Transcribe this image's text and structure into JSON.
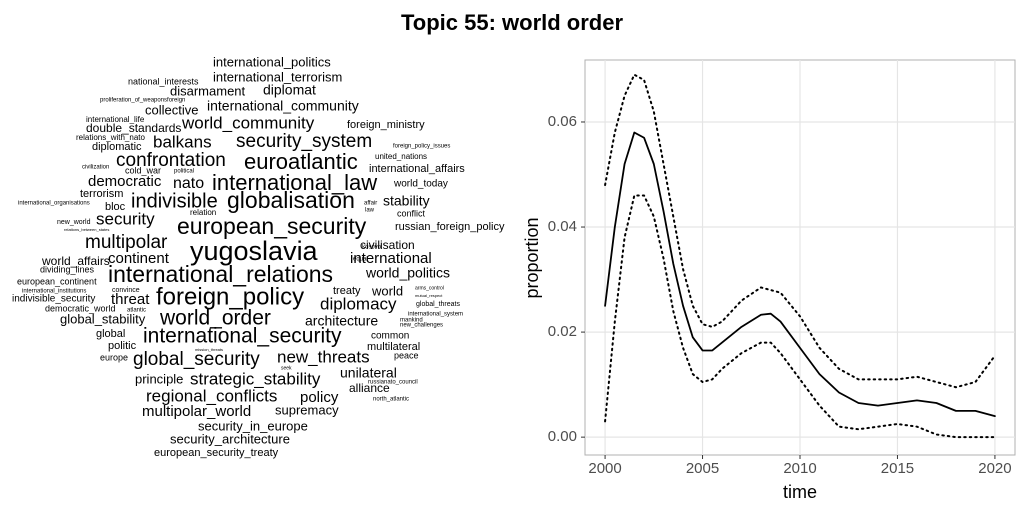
{
  "title": "Topic 55: world order",
  "word_cloud": {
    "words": [
      "international_politics",
      "national_interests",
      "international_terrorism",
      "disarmament",
      "diplomat",
      "proliferation_of_weaponsforeign",
      "international_community",
      "collective",
      "international_life",
      "world_community",
      "foreign_ministry",
      "double_standards",
      "relations_with_nato",
      "balkans",
      "security_system",
      "diplomatic",
      "foreign_policy_issues",
      "united_nations",
      "civilization",
      "cold_war",
      "political",
      "confrontation",
      "euroatlantic",
      "international_affairs",
      "democratic",
      "nato",
      "international_law",
      "world_today",
      "terrorism",
      "globalisation",
      "indivisible",
      "international_organisations",
      "bloc",
      "affair",
      "stability",
      "law",
      "relation",
      "conflict",
      "new_world",
      "security",
      "european_security",
      "russian_foreign_policy",
      "relations_between_states",
      "multipolar",
      "kosovo",
      "civilisation",
      "yugoslavia",
      "equal",
      "international",
      "world_affairs",
      "continent",
      "dividing_lines",
      "international_relations",
      "world_politics",
      "european_continent",
      "international_institutions",
      "convince",
      "treaty",
      "world",
      "arms_control",
      "mutual_respect",
      "indivisible_security",
      "threat",
      "foreign_policy",
      "diplomacy",
      "global_threats",
      "democratic_world",
      "atlantic",
      "international_system",
      "global_stability",
      "world_order",
      "architecture",
      "mankind",
      "new_challenges",
      "international_security",
      "common",
      "global",
      "politic",
      "multilateral",
      "mission_threats",
      "europe",
      "global_security",
      "new_threats",
      "peace",
      "seek",
      "principle",
      "strategic_stability",
      "unilateral",
      "russianato_council",
      "alliance",
      "regional_conflicts",
      "policy",
      "north_atlantic",
      "multipolar_world",
      "supremacy",
      "security_in_europe",
      "security_architecture",
      "european_security_treaty"
    ]
  },
  "chart_data": {
    "type": "line",
    "x_label": "time",
    "y_label": "proportion",
    "x": [
      2000,
      2000.5,
      2001,
      2001.5,
      2002,
      2002.5,
      2003,
      2003.5,
      2004,
      2004.5,
      2005,
      2005.5,
      2006,
      2007,
      2008,
      2008.5,
      2009,
      2010,
      2011,
      2012,
      2013,
      2014,
      2015,
      2016,
      2017,
      2018,
      2019,
      2020
    ],
    "series": [
      {
        "color": "#000000",
        "style": "solid",
        "values": [
          0.025,
          0.04,
          0.052,
          0.058,
          0.057,
          0.052,
          0.043,
          0.033,
          0.025,
          0.019,
          0.0165,
          0.0165,
          0.018,
          0.021,
          0.0233,
          0.0235,
          0.022,
          0.017,
          0.012,
          0.0085,
          0.0065,
          0.006,
          0.0065,
          0.007,
          0.0065,
          0.005,
          0.005,
          0.004
        ]
      },
      {
        "color": "#000000",
        "style": "dotted",
        "values": [
          0.048,
          0.058,
          0.065,
          0.069,
          0.068,
          0.062,
          0.052,
          0.042,
          0.032,
          0.025,
          0.0215,
          0.021,
          0.022,
          0.026,
          0.0285,
          0.028,
          0.0275,
          0.023,
          0.017,
          0.013,
          0.011,
          0.011,
          0.011,
          0.0115,
          0.0105,
          0.0095,
          0.0105,
          0.0155
        ]
      },
      {
        "color": "#000000",
        "style": "dotted",
        "values": [
          0.003,
          0.022,
          0.038,
          0.046,
          0.046,
          0.042,
          0.034,
          0.024,
          0.017,
          0.012,
          0.0105,
          0.011,
          0.013,
          0.016,
          0.018,
          0.018,
          0.016,
          0.011,
          0.006,
          0.002,
          0.0015,
          0.002,
          0.0025,
          0.002,
          0.0005,
          0,
          0,
          0
        ]
      }
    ],
    "xlim": [
      1998.97,
      2021.03
    ],
    "ylim": [
      -0.0034,
      0.0718
    ],
    "xticks": [
      2000,
      2005,
      2010,
      2015,
      2020
    ],
    "yticks": [
      {
        "value": 0,
        "label": "0.00"
      },
      {
        "value": 0.02,
        "label": "0.02"
      },
      {
        "value": 0.04,
        "label": "0.04"
      },
      {
        "value": 0.06,
        "label": "0.06"
      }
    ],
    "grid": true
  }
}
